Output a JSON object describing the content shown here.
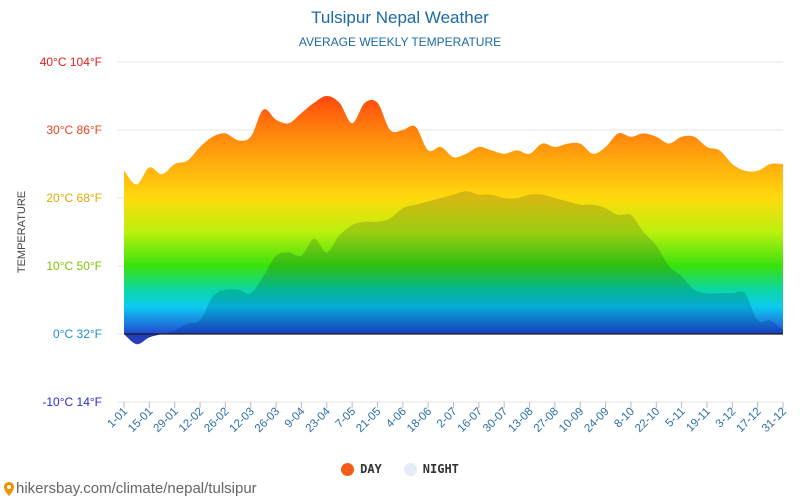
{
  "header": {
    "title": "Tulsipur Nepal Weather",
    "subtitle": "AVERAGE WEEKLY TEMPERATURE"
  },
  "legend": {
    "day": "DAY",
    "night": "NIGHT"
  },
  "source": {
    "text": "hikersbay.com/climate/nepal/tulsipur"
  },
  "colors": {
    "title": "#1b6aa5",
    "day_dot": "#f45b1a",
    "night_dot": "#e6ecf5"
  },
  "chart_data": {
    "type": "area",
    "title": "Tulsipur Nepal Weather",
    "subtitle": "AVERAGE WEEKLY TEMPERATURE",
    "ylabel": "TEMPERATURE",
    "xlabel": "",
    "ylim": [
      -10,
      40
    ],
    "yticks": [
      {
        "value": 40,
        "label": "40°C 104°F",
        "color": "#e0201b"
      },
      {
        "value": 30,
        "label": "30°C 86°F",
        "color": "#e8461e"
      },
      {
        "value": 20,
        "label": "20°C 68°F",
        "color": "#e0a800"
      },
      {
        "value": 10,
        "label": "10°C 50°F",
        "color": "#7cc400"
      },
      {
        "value": 0,
        "label": "0°C 32°F",
        "color": "#1a8fd0"
      },
      {
        "value": -10,
        "label": "-10°C 14°F",
        "color": "#2a2ad0"
      }
    ],
    "xticks": [
      "1-01",
      "15-01",
      "29-01",
      "12-02",
      "26-02",
      "12-03",
      "26-03",
      "9-04",
      "23-04",
      "7-05",
      "21-05",
      "4-06",
      "18-06",
      "2-07",
      "16-07",
      "30-07",
      "13-08",
      "27-08",
      "10-09",
      "24-09",
      "8-10",
      "22-10",
      "5-11",
      "19-11",
      "3-12",
      "17-12",
      "31-12"
    ],
    "grid": true,
    "legend_position": "bottom",
    "series": [
      {
        "name": "DAY",
        "values": [
          24,
          22,
          24.5,
          23.5,
          25,
          25.5,
          27.5,
          29,
          29.5,
          28.5,
          29,
          33,
          31.5,
          31,
          32.5,
          34,
          35,
          34,
          31,
          34,
          34,
          30,
          30,
          30.5,
          27,
          27.5,
          26,
          26.5,
          27.5,
          27,
          26.5,
          27,
          26.5,
          28,
          27.5,
          28,
          28,
          26.5,
          27.5,
          29.5,
          29,
          29.5,
          29,
          28,
          29,
          29,
          27.5,
          27,
          25,
          24,
          24,
          25,
          25
        ]
      },
      {
        "name": "NIGHT",
        "values": [
          0,
          -1.5,
          -0.5,
          0,
          0.5,
          1.5,
          2,
          5.5,
          6.5,
          6.5,
          6,
          8.5,
          11.5,
          12,
          11.5,
          14,
          12,
          14.5,
          16,
          16.5,
          16.5,
          17,
          18.5,
          19,
          19.5,
          20,
          20.5,
          21,
          20.5,
          20.5,
          20,
          20,
          20.5,
          20.5,
          20,
          19.5,
          19,
          19,
          18.5,
          17.5,
          17.5,
          15,
          13,
          10,
          8.5,
          6.5,
          6,
          6,
          6,
          6,
          2,
          2,
          0.5
        ]
      }
    ]
  }
}
